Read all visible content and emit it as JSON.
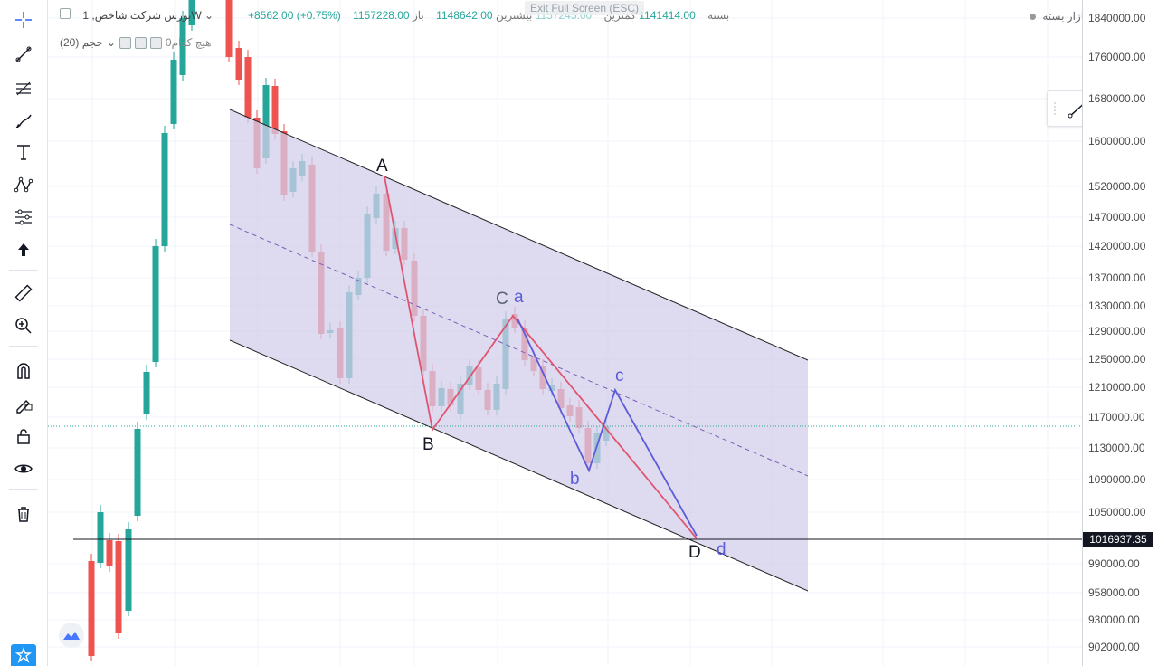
{
  "header": {
    "symbol": "بورس شرکت شاخص, 1W",
    "open_label": "باز",
    "open_value": "1148642.00",
    "high_label": "بیشترین",
    "high_value": "1157245.00",
    "low_label": "کمترین",
    "low_value": "1141414.00",
    "close_label": "بسته",
    "close_value": "1157228.00",
    "change": "+8562.00 (+0.75%)",
    "exit_full_screen": "Exit Full Screen (ESC)",
    "market_status": "بازار بسته"
  },
  "volume_legend": {
    "label": "حجم (20)",
    "value": "هیچ کدام0"
  },
  "price_axis": {
    "ticks": [
      "1840000.00",
      "1760000.00",
      "1680000.00",
      "1600000.00",
      "1520000.00",
      "1470000.00",
      "1420000.00",
      "1370000.00",
      "1330000.00",
      "1290000.00",
      "1250000.00",
      "1210000.00",
      "1170000.00",
      "1130000.00",
      "1090000.00",
      "1050000.00",
      "990000.00",
      "958000.00",
      "930000.00",
      "902000.00"
    ],
    "current_price": "1016937.35"
  },
  "wave_labels": {
    "A": "A",
    "B": "B",
    "C": "C",
    "D": "D",
    "a": "a",
    "b": "b",
    "c": "c",
    "d": "d"
  },
  "toolbar": {
    "tools": [
      "cursor-crosshair",
      "trend-line",
      "fib-retracement",
      "brush",
      "text",
      "pattern",
      "measure-gann",
      "arrow-up",
      "ruler",
      "zoom-in",
      "magnet",
      "lock-drawing",
      "unlock",
      "eye",
      "trash"
    ]
  },
  "colors": {
    "up": "#26a69a",
    "down": "#ef5350",
    "channel_fill": "#d3cde9",
    "abcd_red": "#e05470",
    "abcd_blue": "#5b5bdb"
  }
}
